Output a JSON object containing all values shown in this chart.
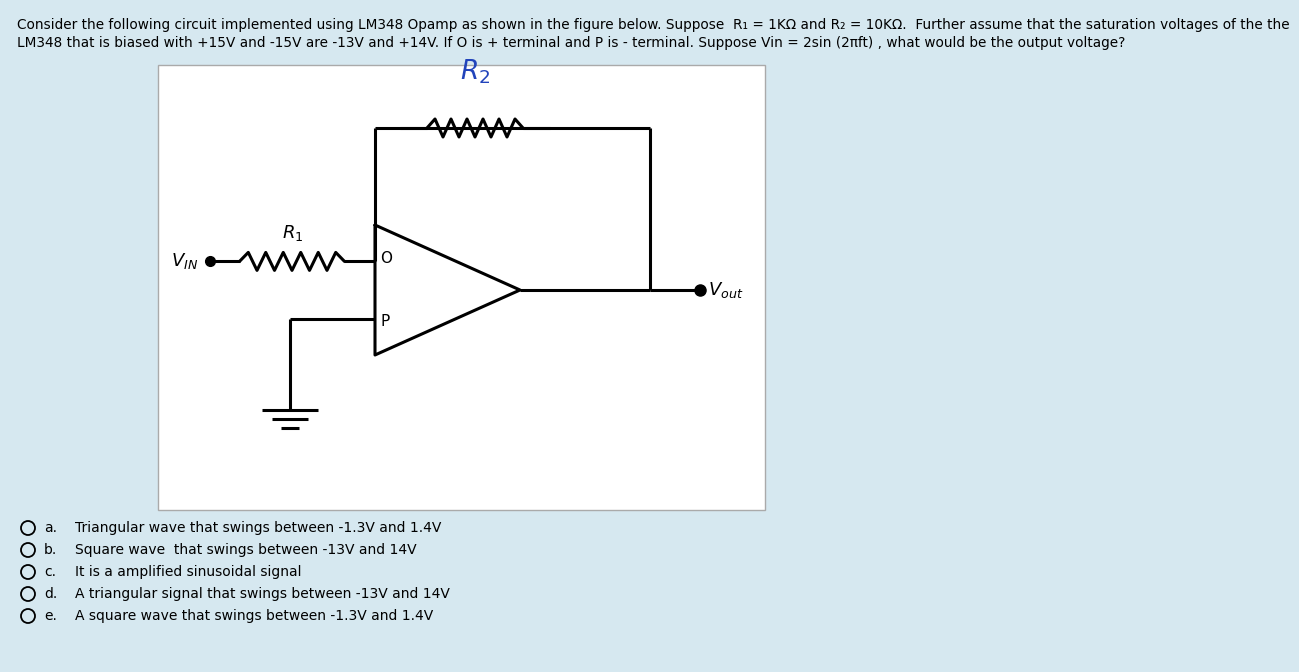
{
  "bg_color": "#d6e8f0",
  "circuit_bg": "#ffffff",
  "text_color": "#000000",
  "blue_color": "#2244bb",
  "title_line1": "Consider the following circuit implemented using LM348 Opamp as shown in the figure below. Suppose  R₁ = 1KΩ and R₂ = 10KΩ.  Further assume that the saturation voltages of the the",
  "title_line2": "LM348 that is biased with +15V and -15V are -13V and +14V. If O is + terminal and P is - terminal. Suppose Vin = 2sin (2πft) , what would be the output voltage?",
  "options": [
    [
      "a.",
      "Triangular wave that swings between -1.3V and 1.4V"
    ],
    [
      "b.",
      "Square wave  that swings between -13V and 14V"
    ],
    [
      "c.",
      "It is a amplified sinusoidal signal"
    ],
    [
      "d.",
      "A triangular signal that swings between -13V and 14V"
    ],
    [
      "e.",
      "A square wave that swings between -1.3V and 1.4V"
    ]
  ],
  "line_color": "#000000",
  "line_width": 2.2
}
